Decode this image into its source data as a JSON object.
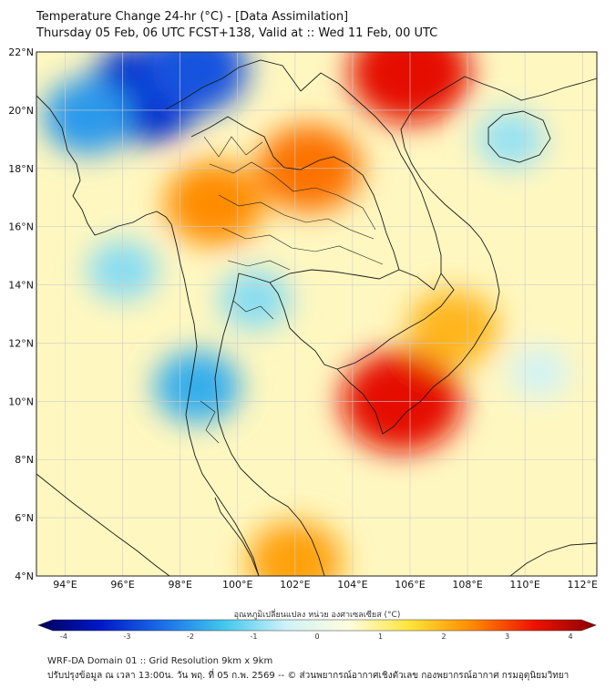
{
  "header": {
    "title": "Temperature Change 24-hr (°C) - [Data Assimilation]",
    "subtitle": "Thursday 05 Feb, 06 UTC FCST+138, Valid at :: Wed 11 Feb, 00 UTC"
  },
  "map": {
    "lat_labels": [
      "22°N",
      "20°N",
      "18°N",
      "16°N",
      "14°N",
      "12°N",
      "10°N",
      "8°N",
      "6°N",
      "4°N"
    ],
    "lon_labels": [
      "94°E",
      "96°E",
      "98°E",
      "100°E",
      "102°E",
      "104°E",
      "106°E",
      "108°E",
      "110°E",
      "112°E"
    ],
    "lat_range": [
      4,
      22
    ],
    "lon_range": [
      93,
      112.5
    ],
    "background_color": "#fff7c0",
    "regions": [
      {
        "name": "cold-north-myanmar",
        "lon": 96.8,
        "lat": 20.6,
        "value": -3.0
      },
      {
        "name": "cold-northeast-myanmar",
        "lon": 98.5,
        "lat": 21.4,
        "value": -2.5
      },
      {
        "name": "cold-bay-of-bengal",
        "lon": 94.8,
        "lat": 19.8,
        "value": -1.8
      },
      {
        "name": "cold-andaman",
        "lon": 96.0,
        "lat": 14.5,
        "value": -0.9
      },
      {
        "name": "cold-peninsula",
        "lon": 98.6,
        "lat": 10.5,
        "value": -1.6
      },
      {
        "name": "cold-gulf",
        "lon": 100.6,
        "lat": 13.5,
        "value": -0.9
      },
      {
        "name": "cold-hainan",
        "lon": 109.5,
        "lat": 19.0,
        "value": -0.8
      },
      {
        "name": "cold-south-china-sea",
        "lon": 110.5,
        "lat": 11.0,
        "value": -0.4
      },
      {
        "name": "warm-north-vietnam",
        "lon": 106.0,
        "lat": 21.3,
        "value": 3.2
      },
      {
        "name": "warm-north-laos",
        "lon": 102.5,
        "lat": 18.0,
        "value": 2.4
      },
      {
        "name": "warm-north-thailand",
        "lon": 99.2,
        "lat": 16.8,
        "value": 2.2
      },
      {
        "name": "warm-mekong-delta",
        "lon": 105.7,
        "lat": 10.0,
        "value": 3.2
      },
      {
        "name": "warm-southern-vietnam",
        "lon": 107.5,
        "lat": 12.5,
        "value": 1.8
      },
      {
        "name": "warm-malaysia",
        "lon": 102.0,
        "lat": 4.5,
        "value": 2.0
      }
    ]
  },
  "colorbar": {
    "label": "อุณหภูมิเปลี่ยนแปลง หน่วย องศาเซลเซียส (°C)",
    "ticks": [
      "-4",
      "-3",
      "-2",
      "-1",
      "0",
      "1",
      "2",
      "3",
      "4"
    ],
    "range": [
      -4,
      4
    ],
    "colors": [
      "#00005a",
      "#0018c8",
      "#1a6ee8",
      "#40c8ee",
      "#cff2f8",
      "#fffde0",
      "#ffe438",
      "#ff8a00",
      "#ee1200",
      "#8c0000"
    ]
  },
  "footer": {
    "line1": "WRF-DA Domain 01 :: Grid Resolution 9km x 9km",
    "line2": "ปรับปรุงข้อมูล ณ เวลา 13:00น. วัน พฤ. ที่ 05 ก.พ. 2569 -- © ส่วนพยากรณ์อากาศเชิงตัวเลข กองพยากรณ์อากาศ กรมอุตุนิยมวิทยา"
  }
}
